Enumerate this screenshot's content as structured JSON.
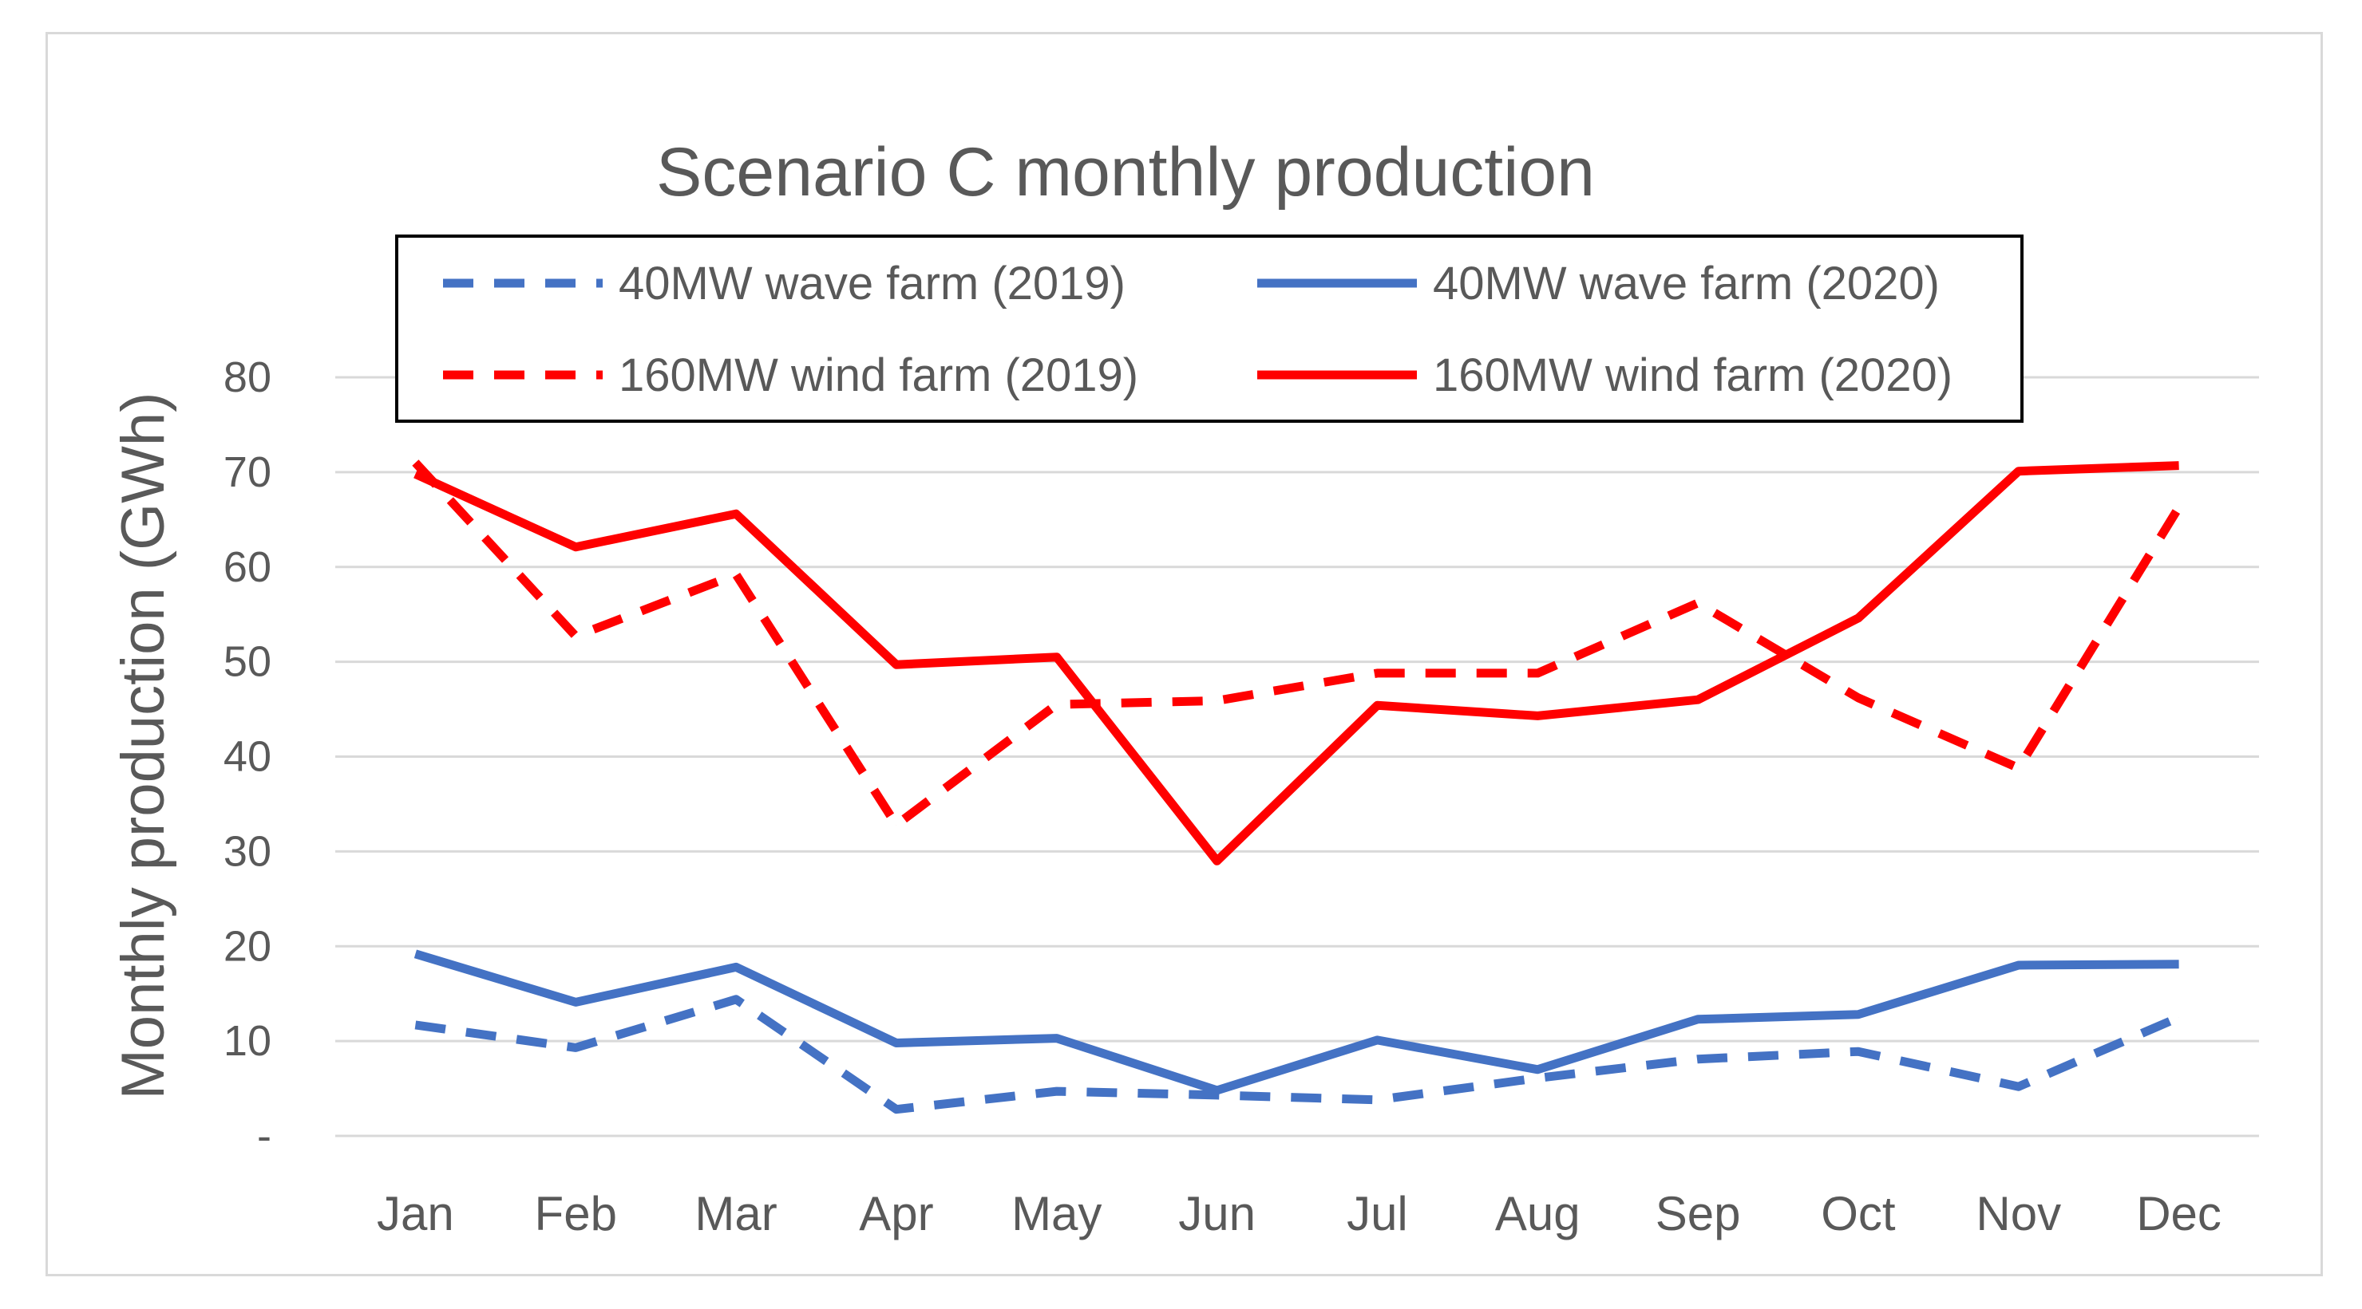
{
  "chart_data": {
    "type": "line",
    "title": "Scenario C monthly production",
    "xlabel": "",
    "ylabel": "Monthly production (GWh)",
    "categories": [
      "Jan",
      "Feb",
      "Mar",
      "Apr",
      "May",
      "Jun",
      "Jul",
      "Aug",
      "Sep",
      "Oct",
      "Nov",
      "Dec"
    ],
    "ylim": [
      0,
      80
    ],
    "yticks": [
      {
        "value": 0,
        "label": "-"
      },
      {
        "value": 10,
        "label": "10"
      },
      {
        "value": 20,
        "label": "20"
      },
      {
        "value": 30,
        "label": "30"
      },
      {
        "value": 40,
        "label": "40"
      },
      {
        "value": 50,
        "label": "50"
      },
      {
        "value": 60,
        "label": "60"
      },
      {
        "value": 70,
        "label": "70"
      },
      {
        "value": 80,
        "label": "80"
      }
    ],
    "grid": true,
    "legend_position": "top",
    "series": [
      {
        "name": "40MW wave farm (2019)",
        "color": "#4472c4",
        "style": "dashed",
        "values": [
          11.7,
          9.3,
          14.4,
          2.8,
          4.7,
          4.3,
          3.8,
          6.1,
          8.1,
          8.9,
          5.2,
          12.5
        ]
      },
      {
        "name": "40MW wave farm (2020)",
        "color": "#4472c4",
        "style": "solid",
        "values": [
          19.2,
          14.1,
          17.8,
          9.8,
          10.3,
          4.8,
          10.1,
          7.0,
          12.3,
          12.8,
          18.0,
          18.1
        ]
      },
      {
        "name": "160MW wind farm (2019)",
        "color": "#ff0000",
        "style": "dashed",
        "values": [
          71.0,
          52.7,
          59.2,
          32.8,
          45.5,
          45.9,
          48.8,
          48.8,
          56.2,
          46.2,
          38.8,
          66.3
        ]
      },
      {
        "name": "160MW wind farm (2020)",
        "color": "#ff0000",
        "style": "solid",
        "values": [
          69.8,
          62.1,
          65.6,
          49.7,
          50.5,
          29.0,
          45.4,
          44.3,
          46.0,
          54.6,
          70.1,
          70.7
        ]
      }
    ]
  }
}
